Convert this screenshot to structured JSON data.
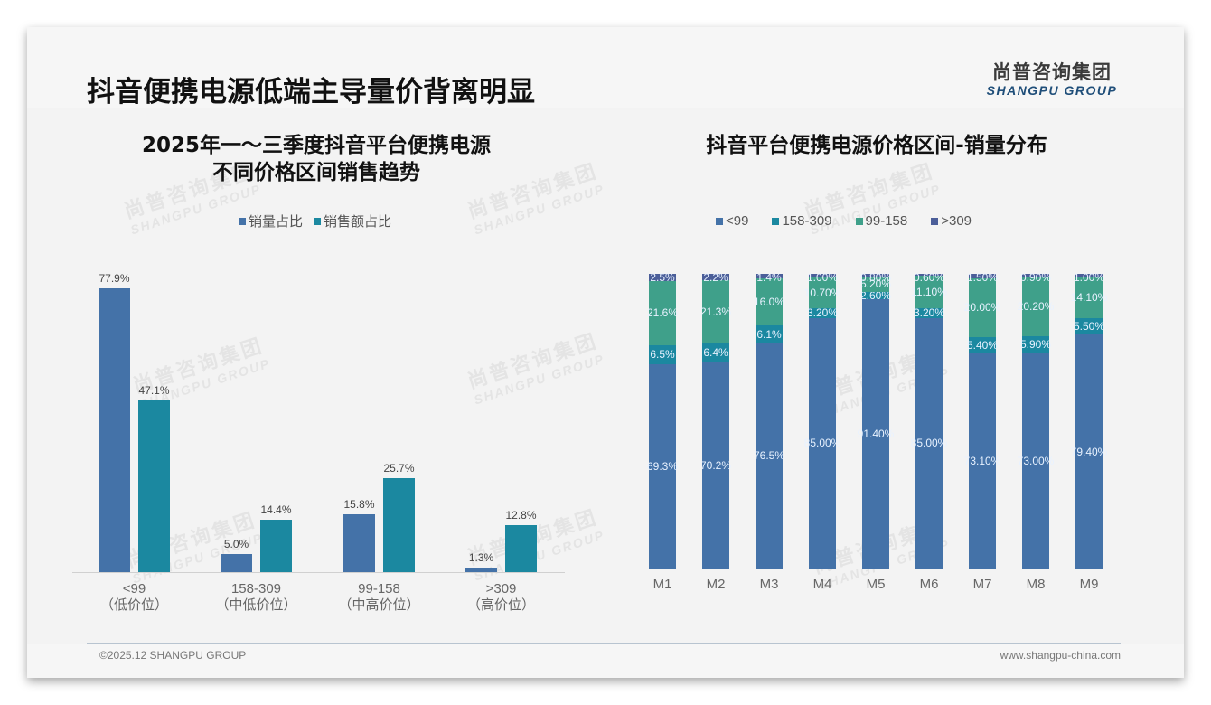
{
  "header": {
    "title": "抖音便携电源低端主导量价背离明显",
    "logo_cn": "尚普咨询集团",
    "logo_en": "SHANGPU GROUP"
  },
  "watermark": {
    "cn": "尚普咨询集团",
    "en": "SHANGPU GROUP"
  },
  "footer": {
    "copyright": "©2025.12 SHANGPU GROUP",
    "website": "www.shangpu-china.com"
  },
  "colors": {
    "lt99": "#4472a8",
    "r158_309": "#1b88a0",
    "r99_158": "#3fa08a",
    "gt309": "#4b5e99",
    "sales_volume": "#4472a8",
    "sales_amount": "#1b88a0"
  },
  "left_chart": {
    "title_line1": "2025年一～三季度抖音平台便携电源",
    "title_line2": "不同价格区间销售趋势",
    "legend": [
      "销量占比",
      "销售额占比"
    ]
  },
  "right_chart": {
    "title": "抖音平台便携电源价格区间-销量分布",
    "legend": [
      "<99",
      "158-309",
      "99-158",
      ">309"
    ]
  },
  "chart_data": [
    {
      "type": "bar",
      "title": "2025年一～三季度抖音平台便携电源不同价格区间销售趋势",
      "categories": [
        "<99（低价位）",
        "158-309（中低价位）",
        "99-158（中高价位）",
        ">309（高价位）"
      ],
      "category_lines": [
        [
          "<99",
          "（低价位）"
        ],
        [
          "158-309",
          "（中低价位）"
        ],
        [
          "99-158",
          "（中高价位）"
        ],
        [
          ">309",
          "（高价位）"
        ]
      ],
      "series": [
        {
          "name": "销量占比",
          "values": [
            77.9,
            5.0,
            15.8,
            1.3
          ],
          "labels": [
            "77.9%",
            "5.0%",
            "15.8%",
            "1.3%"
          ]
        },
        {
          "name": "销售额占比",
          "values": [
            47.1,
            14.4,
            25.7,
            12.8
          ],
          "labels": [
            "47.1%",
            "14.4%",
            "25.7%",
            "12.8%"
          ]
        }
      ],
      "ylim": [
        0,
        80
      ],
      "grid": false,
      "legend_position": "top",
      "xlabel": "",
      "ylabel": ""
    },
    {
      "type": "bar",
      "stacked": true,
      "title": "抖音平台便携电源价格区间-销量分布",
      "categories": [
        "M1",
        "M2",
        "M3",
        "M4",
        "M5",
        "M6",
        "M7",
        "M8",
        "M9"
      ],
      "series": [
        {
          "name": "<99",
          "values": [
            69.3,
            70.2,
            76.5,
            85.0,
            91.4,
            85.0,
            73.1,
            73.0,
            79.4
          ],
          "labels": [
            "69.3%",
            "70.2%",
            "76.5%",
            "85.00%",
            "91.40%",
            "85.00%",
            "73.10%",
            "73.00%",
            "79.40%"
          ]
        },
        {
          "name": "158-309",
          "values": [
            6.5,
            6.4,
            6.1,
            3.2,
            2.6,
            3.2,
            5.4,
            5.9,
            5.5
          ],
          "labels": [
            "6.5%",
            "6.4%",
            "6.1%",
            "3.20%",
            "2.60%",
            "3.20%",
            "5.40%",
            "5.90%",
            "5.50%"
          ]
        },
        {
          "name": "99-158",
          "values": [
            21.6,
            21.3,
            16.0,
            10.7,
            5.2,
            11.1,
            20.0,
            20.2,
            14.1
          ],
          "labels": [
            "21.6%",
            "21.3%",
            "16.0%",
            "10.70%",
            "5.20%",
            "11.10%",
            "20.00%",
            "20.20%",
            "14.10%"
          ]
        },
        {
          "name": ">309",
          "values": [
            2.5,
            2.2,
            1.4,
            1.0,
            0.8,
            0.6,
            1.5,
            0.9,
            1.0
          ],
          "labels": [
            "2.5%",
            "2.2%",
            "1.4%",
            "1.00%",
            "0.80%",
            "0.60%",
            "1.50%",
            "0.90%",
            "1.00%"
          ]
        }
      ],
      "ylim": [
        0,
        100
      ],
      "grid": false,
      "legend_position": "top",
      "xlabel": "",
      "ylabel": ""
    }
  ]
}
